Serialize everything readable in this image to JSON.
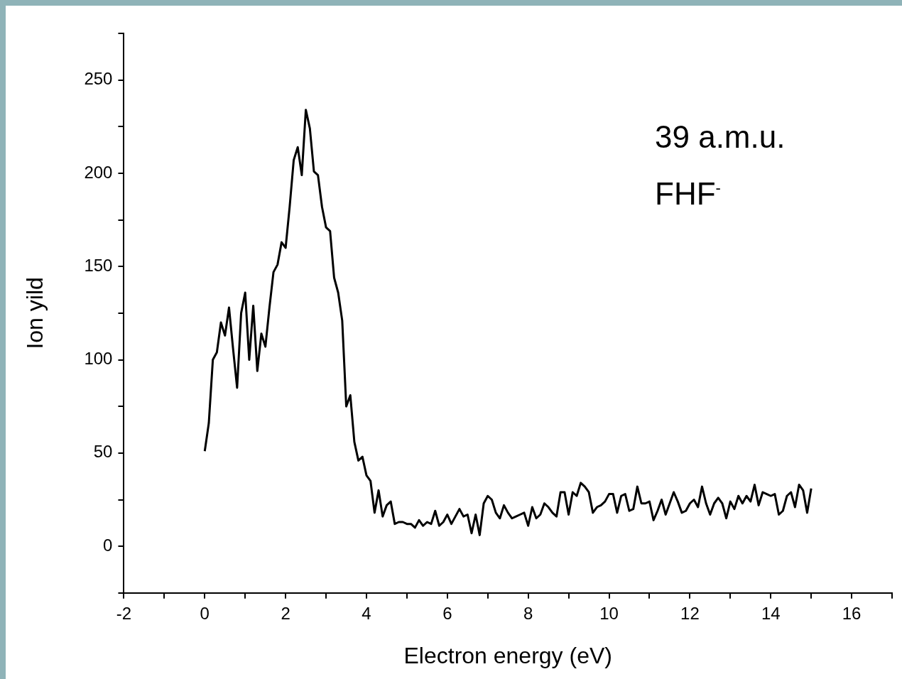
{
  "chart_data": {
    "type": "line",
    "xlabel": "Electron energy (eV)",
    "ylabel": "Ion yild",
    "annotations": [
      "39 a.m.u.",
      "FHF$^{-}$"
    ],
    "xlim": [
      -2,
      17
    ],
    "ylim": [
      -25,
      275
    ],
    "xticks": [
      -2,
      {
        "value": -1,
        "label": null
      },
      0,
      {
        "value": 1,
        "label": null
      },
      2,
      {
        "value": 3,
        "label": null
      },
      4,
      {
        "value": 5,
        "label": null
      },
      6,
      {
        "value": 7,
        "label": null
      },
      8,
      {
        "value": 9,
        "label": null
      },
      10,
      {
        "value": 11,
        "label": null
      },
      12,
      {
        "value": 13,
        "label": null
      },
      14,
      {
        "value": 15,
        "label": null
      },
      16,
      {
        "value": 17,
        "label": null
      }
    ],
    "yticks": [
      {
        "value": -25,
        "label": null
      },
      0,
      {
        "value": 25,
        "label": null
      },
      50,
      {
        "value": 75,
        "label": null
      },
      100,
      {
        "value": 125,
        "label": null
      },
      150,
      {
        "value": 175,
        "label": null
      },
      200,
      {
        "value": 225,
        "label": null
      },
      250,
      {
        "value": 275,
        "label": null
      }
    ],
    "grid": false,
    "legend": false,
    "marker": "none",
    "line_style": "solid",
    "series": [
      {
        "color": "#000000",
        "x": [
          0,
          0.1,
          0.2,
          0.3,
          0.4,
          0.5,
          0.6,
          0.7,
          0.8,
          0.9,
          1,
          1.1,
          1.2,
          1.3,
          1.4,
          1.5,
          1.6,
          1.7,
          1.8,
          1.9,
          2,
          2.1,
          2.2,
          2.3,
          2.4,
          2.5,
          2.6,
          2.7,
          2.8,
          2.9,
          3,
          3.1,
          3.2,
          3.3,
          3.4,
          3.5,
          3.6,
          3.7,
          3.8,
          3.9,
          4,
          4.1,
          4.2,
          4.3,
          4.4,
          4.5,
          4.6,
          4.7,
          4.8,
          4.9,
          5,
          5.1,
          5.2,
          5.3,
          5.4,
          5.5,
          5.6,
          5.7,
          5.8,
          5.9,
          6,
          6.1,
          6.2,
          6.3,
          6.4,
          6.5,
          6.6,
          6.7,
          6.8,
          6.9,
          7,
          7.1,
          7.2,
          7.3,
          7.4,
          7.5,
          7.6,
          7.7,
          7.8,
          7.9,
          8,
          8.1,
          8.2,
          8.3,
          8.4,
          8.5,
          8.6,
          8.7,
          8.8,
          8.9,
          9,
          9.1,
          9.2,
          9.3,
          9.4,
          9.5,
          9.6,
          9.7,
          9.8,
          9.9,
          10,
          10.1,
          10.2,
          10.3,
          10.4,
          10.5,
          10.6,
          10.7,
          10.8,
          10.9,
          11,
          11.1,
          11.2,
          11.3,
          11.4,
          11.5,
          11.6,
          11.7,
          11.8,
          11.9,
          12,
          12.1,
          12.2,
          12.3,
          12.4,
          12.5,
          12.6,
          12.7,
          12.8,
          12.9,
          13,
          13.1,
          13.2,
          13.3,
          13.4,
          13.5,
          13.6,
          13.7,
          13.8,
          13.9,
          14,
          14.1,
          14.2,
          14.3,
          14.4,
          14.5,
          14.6,
          14.7,
          14.8,
          14.9,
          15
        ],
        "values": [
          51,
          66,
          100,
          104,
          120,
          113,
          128,
          106,
          85,
          125,
          136,
          100,
          129,
          94,
          114,
          107,
          128,
          147,
          151,
          163,
          160,
          182,
          207,
          214,
          199,
          234,
          224,
          201,
          199,
          182,
          171,
          169,
          144,
          136,
          121,
          75,
          81,
          56,
          46,
          48,
          38,
          35,
          18,
          30,
          16,
          22,
          24,
          12,
          13,
          13,
          12,
          12,
          10,
          14,
          11,
          13,
          12,
          19,
          11,
          13,
          17,
          12,
          16,
          20,
          16,
          17,
          7,
          17,
          6,
          23,
          27,
          25,
          18,
          15,
          22,
          18,
          15,
          16,
          17,
          18,
          11,
          21,
          15,
          17,
          23,
          21,
          18,
          16,
          29,
          29,
          17,
          29,
          27,
          34,
          32,
          29,
          18,
          21,
          22,
          24,
          28,
          28,
          18,
          27,
          28,
          19,
          20,
          32,
          23,
          23,
          24,
          14,
          19,
          25,
          17,
          23,
          29,
          24,
          18,
          19,
          23,
          25,
          21,
          32,
          23,
          17,
          23,
          26,
          23,
          15,
          24,
          20,
          27,
          23,
          27,
          24,
          33,
          22,
          29,
          28,
          27,
          28,
          17,
          19,
          27,
          29,
          21,
          33,
          30,
          18,
          31
        ]
      }
    ]
  }
}
